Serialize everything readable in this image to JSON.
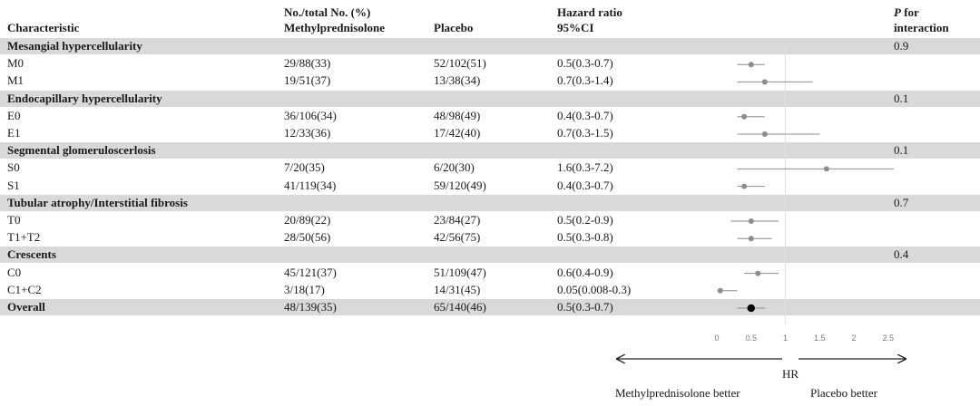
{
  "chart_data": {
    "type": "forest",
    "columns": {
      "characteristic": "Characteristic",
      "group_header": "No./total No. (%)",
      "treatment": "Methylprednisolone",
      "placebo": "Placebo",
      "hr_title": "Hazard ratio",
      "hr_sub": "95%CI",
      "p_line1": "P",
      "p_line1_rest": " for",
      "p_line2": "interaction"
    },
    "groups": [
      {
        "name": "Mesangial hypercellularity",
        "p": "0.9",
        "rows": [
          {
            "label": "M0",
            "treat": "29/88(33)",
            "placebo": "52/102(51)",
            "hr_text": "0.5(0.3-0.7)",
            "hr": 0.5,
            "lo": 0.3,
            "hi": 0.7
          },
          {
            "label": "M1",
            "treat": "19/51(37)",
            "placebo": "13/38(34)",
            "hr_text": "0.7(0.3-1.4)",
            "hr": 0.7,
            "lo": 0.3,
            "hi": 1.4
          }
        ]
      },
      {
        "name": "Endocapillary hypercellularity",
        "p": "0.1",
        "rows": [
          {
            "label": "E0",
            "treat": "36/106(34)",
            "placebo": "48/98(49)",
            "hr_text": "0.4(0.3-0.7)",
            "hr": 0.4,
            "lo": 0.3,
            "hi": 0.7
          },
          {
            "label": "E1",
            "treat": "12/33(36)",
            "placebo": "17/42(40)",
            "hr_text": "0.7(0.3-1.5)",
            "hr": 0.7,
            "lo": 0.3,
            "hi": 1.5
          }
        ]
      },
      {
        "name": "Segmental glomeruloscerlosis",
        "p": "0.1",
        "rows": [
          {
            "label": "S0",
            "treat": "7/20(35)",
            "placebo": "6/20(30)",
            "hr_text": "1.6(0.3-7.2)",
            "hr": 1.6,
            "lo": 0.3,
            "hi": 7.2
          },
          {
            "label": "S1",
            "treat": "41/119(34)",
            "placebo": "59/120(49)",
            "hr_text": "0.4(0.3-0.7)",
            "hr": 0.4,
            "lo": 0.3,
            "hi": 0.7
          }
        ]
      },
      {
        "name": "Tubular atrophy/Interstitial fibrosis",
        "p": "0.7",
        "rows": [
          {
            "label": "T0",
            "treat": "20/89(22)",
            "placebo": "23/84(27)",
            "hr_text": "0.5(0.2-0.9)",
            "hr": 0.5,
            "lo": 0.2,
            "hi": 0.9
          },
          {
            "label": "T1+T2",
            "treat": "28/50(56)",
            "placebo": "42/56(75)",
            "hr_text": "0.5(0.3-0.8)",
            "hr": 0.5,
            "lo": 0.3,
            "hi": 0.8
          }
        ]
      },
      {
        "name": "Crescents",
        "p": "0.4",
        "rows": [
          {
            "label": "C0",
            "treat": "45/121(37)",
            "placebo": "51/109(47)",
            "hr_text": "0.6(0.4-0.9)",
            "hr": 0.6,
            "lo": 0.4,
            "hi": 0.9
          },
          {
            "label": "C1+C2",
            "treat": "3/18(17)",
            "placebo": "14/31(45)",
            "hr_text": "0.05(0.008-0.3)",
            "hr": 0.05,
            "lo": 0.008,
            "hi": 0.3
          }
        ]
      }
    ],
    "overall": {
      "label": "Overall",
      "treat": "48/139(35)",
      "placebo": "65/140(46)",
      "hr_text": "0.5(0.3-0.7)",
      "hr": 0.5,
      "lo": 0.3,
      "hi": 0.7
    },
    "x_axis": {
      "ticks": [
        "0",
        "0.5",
        "1",
        "1.5",
        "2",
        "2.5"
      ],
      "xlim": [
        0,
        2.5
      ],
      "ref": 1,
      "label": "HR"
    },
    "direction_labels": {
      "left": "Methylprednisolone better",
      "right": "Placebo better"
    },
    "colors": {
      "band": "#d9d9d9",
      "marker": "#8c8c8c",
      "overall_marker": "#000000",
      "ci_line": "#8c8c8c",
      "ref_line": "#e3e3e3"
    }
  }
}
